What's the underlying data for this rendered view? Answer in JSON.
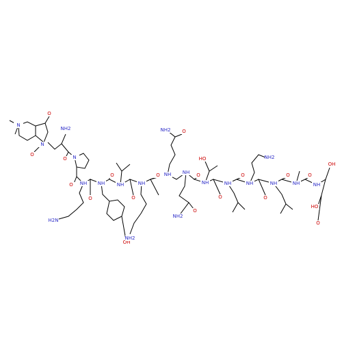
{
  "atoms": [
    "N",
    "O",
    "O",
    "N",
    "NH2",
    "O",
    "N",
    "O",
    "NH",
    "H2N",
    "O",
    "NH",
    "O",
    "OH",
    "NH",
    "O",
    "NH",
    "NH2",
    "O",
    "NH",
    "NH2",
    "O",
    "NH",
    "O",
    "NH2",
    "O",
    "NH",
    "HO",
    "O",
    "NH",
    "O",
    "NH",
    "NH2",
    "O",
    "NH",
    "O",
    "NH",
    "O",
    "NH",
    "OH",
    "HO",
    "O"
  ]
}
